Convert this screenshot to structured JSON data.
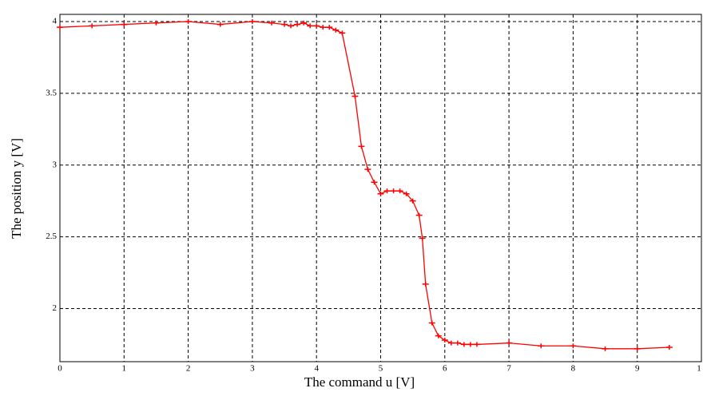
{
  "chart_data": {
    "type": "line",
    "x_label": "The command u [V]",
    "y_label": "The position y [V]",
    "x": [
      0,
      0.5,
      1,
      1.5,
      2,
      2.5,
      3,
      3.3,
      3.5,
      3.6,
      3.7,
      3.8,
      3.9,
      4.0,
      4.1,
      4.2,
      4.3,
      4.4,
      4.6,
      4.7,
      4.8,
      4.9,
      5.0,
      5.1,
      5.2,
      5.3,
      5.4,
      5.5,
      5.6,
      5.65,
      5.7,
      5.8,
      5.9,
      6.0,
      6.1,
      6.2,
      6.3,
      6.4,
      6.5,
      7,
      7.5,
      8,
      8.5,
      9,
      9.5
    ],
    "series": [
      {
        "color": "#ff0000",
        "values": [
          3.96,
          3.97,
          3.98,
          3.99,
          4.0,
          3.98,
          4.0,
          3.99,
          3.98,
          3.97,
          3.98,
          3.99,
          3.97,
          3.97,
          3.96,
          3.96,
          3.94,
          3.92,
          3.48,
          3.13,
          2.97,
          2.88,
          2.8,
          2.82,
          2.82,
          2.82,
          2.8,
          2.75,
          2.65,
          2.49,
          2.17,
          1.9,
          1.81,
          1.78,
          1.76,
          1.76,
          1.75,
          1.75,
          1.75,
          1.76,
          1.74,
          1.74,
          1.72,
          1.72,
          1.73
        ]
      }
    ],
    "xlim": [
      0,
      10
    ],
    "ylim": [
      1.63,
      4.05
    ],
    "xticks": [
      0,
      1,
      2,
      3,
      4,
      5,
      6,
      7,
      8,
      9,
      {
        "value": 10,
        "label": "1"
      }
    ],
    "yticks": [
      2,
      2.5,
      3,
      3.5,
      4
    ],
    "grid": true
  }
}
